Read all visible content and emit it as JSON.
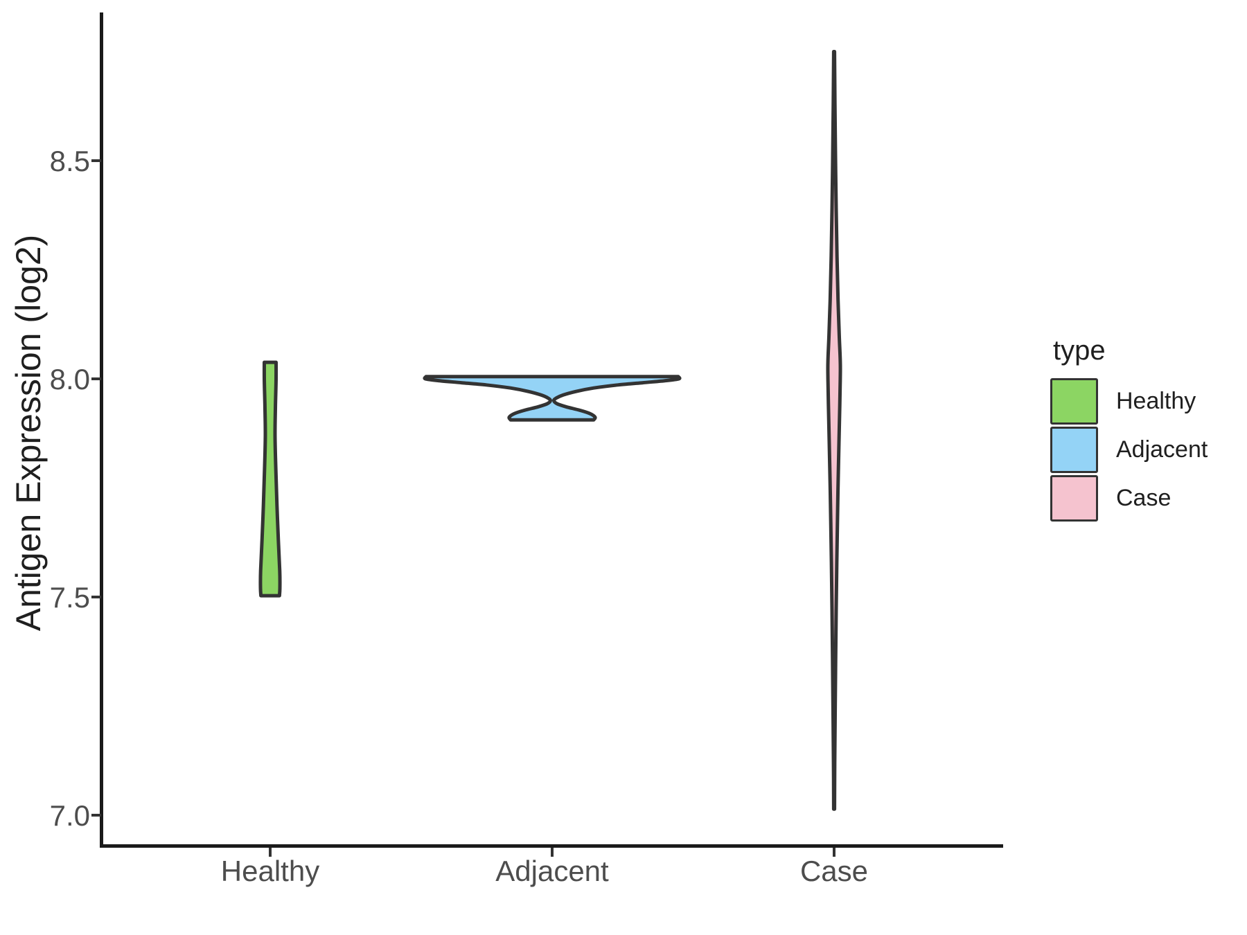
{
  "chart_data": {
    "type": "violin",
    "title": "",
    "xlabel": "",
    "ylabel": "Antigen Expression (log2)",
    "categories": [
      "Healthy",
      "Adjacent",
      "Case"
    ],
    "y_axis": {
      "ticks": [
        "7.0",
        "7.5",
        "8.0",
        "8.5"
      ],
      "tick_values": [
        7.0,
        7.5,
        8.0,
        8.5
      ],
      "range_shown": [
        6.85,
        8.9
      ],
      "grid": "off"
    },
    "outline_color": "#333333",
    "background": "#ffffff",
    "series": [
      {
        "name": "Healthy",
        "color": "#8CD563",
        "value_range": [
          7.503,
          8.038
        ],
        "profile": [
          [
            8.038,
            8.5
          ],
          [
            8.0,
            8.5
          ],
          [
            7.94,
            7.6
          ],
          [
            7.87,
            7.0
          ],
          [
            7.79,
            8.2
          ],
          [
            7.71,
            9.8
          ],
          [
            7.63,
            11.8
          ],
          [
            7.56,
            13.8
          ],
          [
            7.52,
            14.0
          ],
          [
            7.503,
            13.4
          ]
        ]
      },
      {
        "name": "Adjacent",
        "color": "#94D3F6",
        "value_range": [
          7.906,
          8.005
        ],
        "profile": [
          [
            8.005,
            182
          ],
          [
            8.0,
            183
          ],
          [
            7.996,
            165
          ],
          [
            7.991,
            130
          ],
          [
            7.986,
            95
          ],
          [
            7.979,
            60
          ],
          [
            7.971,
            34
          ],
          [
            7.963,
            16
          ],
          [
            7.956,
            6
          ],
          [
            7.95,
            2.5
          ],
          [
            7.943,
            7
          ],
          [
            7.936,
            20
          ],
          [
            7.928,
            40
          ],
          [
            7.92,
            55
          ],
          [
            7.912,
            62
          ],
          [
            7.906,
            60
          ]
        ]
      },
      {
        "name": "Case",
        "color": "#F5C3CF",
        "value_range": [
          7.014,
          8.75
        ],
        "profile": [
          [
            8.75,
            0.6
          ],
          [
            8.63,
            1.2
          ],
          [
            8.51,
            2.0
          ],
          [
            8.39,
            3.0
          ],
          [
            8.28,
            4.2
          ],
          [
            8.18,
            5.7
          ],
          [
            8.1,
            7.4
          ],
          [
            8.04,
            8.9
          ],
          [
            8.0,
            8.9
          ],
          [
            7.94,
            8.2
          ],
          [
            7.86,
            7.1
          ],
          [
            7.77,
            5.9
          ],
          [
            7.68,
            4.9
          ],
          [
            7.58,
            3.9
          ],
          [
            7.47,
            3.0
          ],
          [
            7.35,
            2.2
          ],
          [
            7.23,
            1.5
          ],
          [
            7.12,
            0.9
          ],
          [
            7.014,
            0.6
          ]
        ]
      }
    ],
    "legend": {
      "title": "type",
      "position": "right",
      "entries": [
        {
          "label": "Healthy",
          "color": "#8CD563"
        },
        {
          "label": "Adjacent",
          "color": "#94D3F6"
        },
        {
          "label": "Case",
          "color": "#F5C3CF"
        }
      ]
    }
  }
}
